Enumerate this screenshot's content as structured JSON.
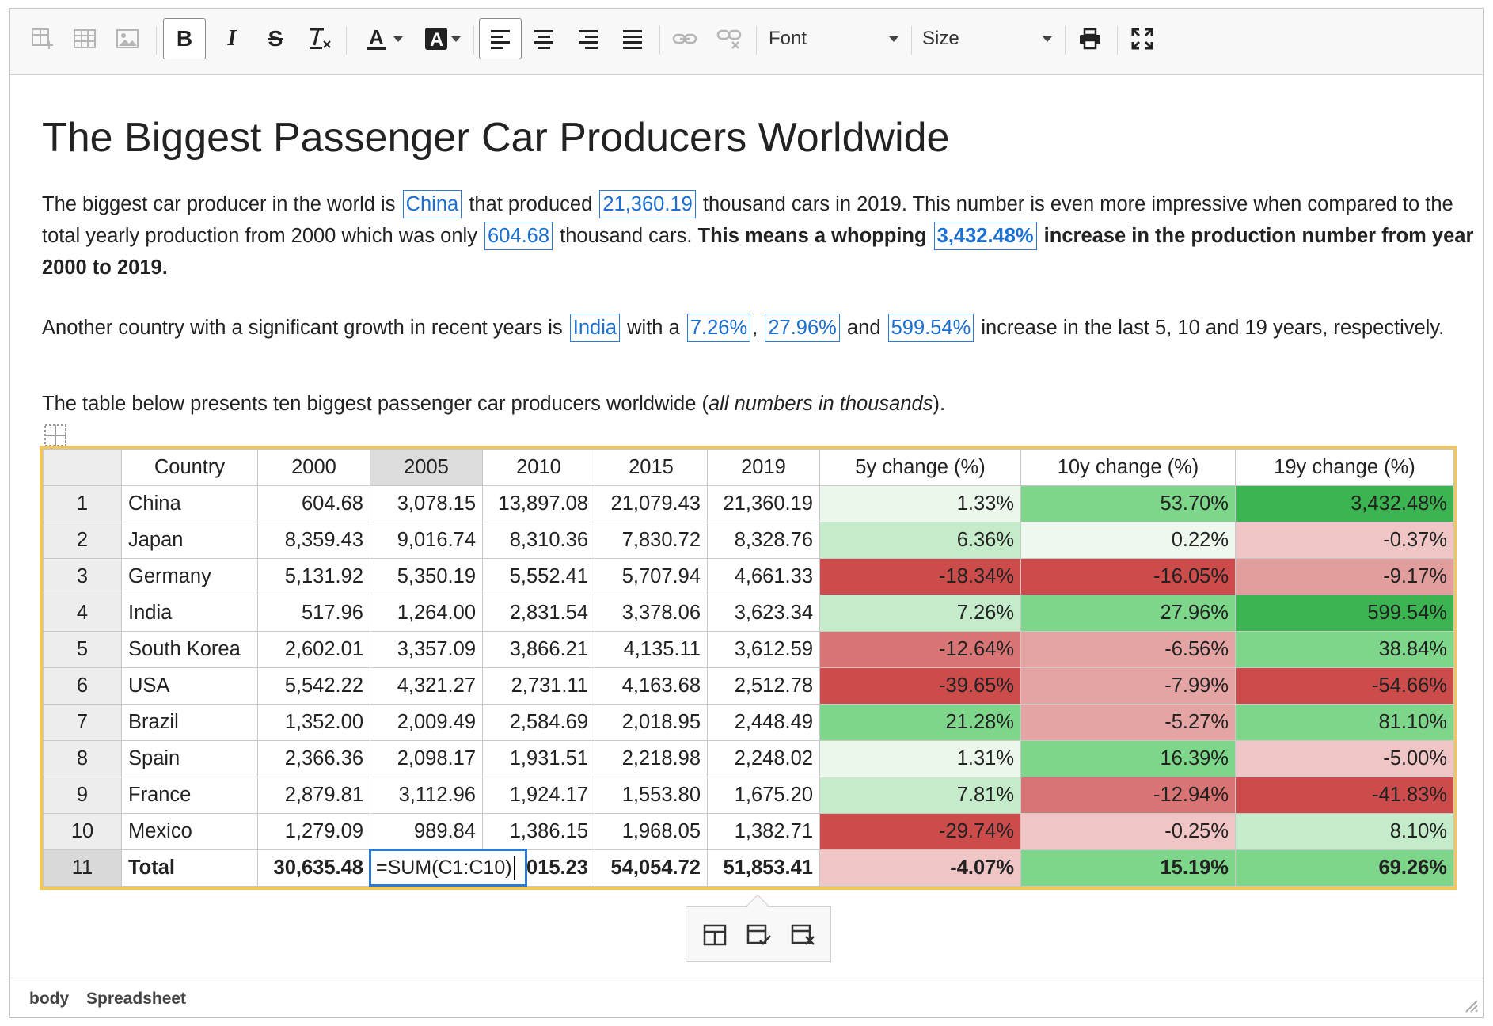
{
  "toolbar": {
    "font_label": "Font",
    "size_label": "Size"
  },
  "doc": {
    "title": "The Biggest Passenger Car Producers Worldwide",
    "p1": {
      "t1": "The biggest car producer in the world is",
      "v_country": "China",
      "t2": "that produced",
      "v_2019": "21,360.19",
      "t3": "thousand cars in 2019. This number is even more impressive when compared to the total yearly production from 2000 which was only",
      "v_2000": "604.68",
      "t4": "thousand cars.",
      "b1": "This means a whopping",
      "v_increase": "3,432.48%",
      "b2": "increase in the production number from year 2000 to 2019."
    },
    "p2": {
      "t1": "Another country with a significant growth in recent years is",
      "v_country": "India",
      "t2": "with a",
      "v_5y": "7.26%",
      "sep": ",",
      "v_10y": "27.96%",
      "t3": "and",
      "v_19y": "599.54%",
      "t4": "increase in the last 5, 10 and 19 years, respectively."
    },
    "p3": {
      "t1": "The table below presents ten biggest passenger car producers worldwide (",
      "em": "all numbers in thousands",
      "t2": ")."
    }
  },
  "table": {
    "headers": [
      "",
      "Country",
      "2000",
      "2005",
      "2010",
      "2015",
      "2019",
      "5y change (%)",
      "10y change (%)",
      "19y change (%)"
    ],
    "rows": [
      {
        "n": "1",
        "country": "China",
        "y2000": "604.68",
        "y2005": "3,078.15",
        "y2010": "13,897.08",
        "y2015": "21,079.43",
        "y2019": "21,360.19",
        "c5": "1.33%",
        "c10": "53.70%",
        "c19": "3,432.48%",
        "bg5": "#eaf7ea",
        "bg10": "#7dd68a",
        "bg19": "#3cb451"
      },
      {
        "n": "2",
        "country": "Japan",
        "y2000": "8,359.43",
        "y2005": "9,016.74",
        "y2010": "8,310.36",
        "y2015": "7,830.72",
        "y2019": "8,328.76",
        "c5": "6.36%",
        "c10": "0.22%",
        "c19": "-0.37%",
        "bg5": "#c5ecca",
        "bg10": "#eef8ee",
        "bg19": "#efc5c5"
      },
      {
        "n": "3",
        "country": "Germany",
        "y2000": "5,131.92",
        "y2005": "5,350.19",
        "y2010": "5,552.41",
        "y2015": "5,707.94",
        "y2019": "4,661.33",
        "c5": "-18.34%",
        "c10": "-16.05%",
        "c19": "-9.17%",
        "bg5": "#cc4b4b",
        "bg10": "#cc4b4b",
        "bg19": "#e29d9d"
      },
      {
        "n": "4",
        "country": "India",
        "y2000": "517.96",
        "y2005": "1,264.00",
        "y2010": "2,831.54",
        "y2015": "3,378.06",
        "y2019": "3,623.34",
        "c5": "7.26%",
        "c10": "27.96%",
        "c19": "599.54%",
        "bg5": "#c5ecca",
        "bg10": "#7dd68a",
        "bg19": "#3cb451"
      },
      {
        "n": "5",
        "country": "South Korea",
        "y2000": "2,602.01",
        "y2005": "3,357.09",
        "y2010": "3,866.21",
        "y2015": "4,135.11",
        "y2019": "3,612.59",
        "c5": "-12.64%",
        "c10": "-6.56%",
        "c19": "38.84%",
        "bg5": "#d97474",
        "bg10": "#e5a4a4",
        "bg19": "#7dd68a"
      },
      {
        "n": "6",
        "country": "USA",
        "y2000": "5,542.22",
        "y2005": "4,321.27",
        "y2010": "2,731.11",
        "y2015": "4,163.68",
        "y2019": "2,512.78",
        "c5": "-39.65%",
        "c10": "-7.99%",
        "c19": "-54.66%",
        "bg5": "#cc4b4b",
        "bg10": "#e5a4a4",
        "bg19": "#cc4b4b"
      },
      {
        "n": "7",
        "country": "Brazil",
        "y2000": "1,352.00",
        "y2005": "2,009.49",
        "y2010": "2,584.69",
        "y2015": "2,018.95",
        "y2019": "2,448.49",
        "c5": "21.28%",
        "c10": "-5.27%",
        "c19": "81.10%",
        "bg5": "#7dd68a",
        "bg10": "#e5a4a4",
        "bg19": "#7dd68a"
      },
      {
        "n": "8",
        "country": "Spain",
        "y2000": "2,366.36",
        "y2005": "2,098.17",
        "y2010": "1,931.51",
        "y2015": "2,218.98",
        "y2019": "2,248.02",
        "c5": "1.31%",
        "c10": "16.39%",
        "c19": "-5.00%",
        "bg5": "#eaf7ea",
        "bg10": "#7dd68a",
        "bg19": "#efc5c5"
      },
      {
        "n": "9",
        "country": "France",
        "y2000": "2,879.81",
        "y2005": "3,112.96",
        "y2010": "1,924.17",
        "y2015": "1,553.80",
        "y2019": "1,675.20",
        "c5": "7.81%",
        "c10": "-12.94%",
        "c19": "-41.83%",
        "bg5": "#c5ecca",
        "bg10": "#d97474",
        "bg19": "#cc4b4b"
      },
      {
        "n": "10",
        "country": "Mexico",
        "y2000": "1,279.09",
        "y2005": "989.84",
        "y2010": "1,386.15",
        "y2015": "1,968.05",
        "y2019": "1,382.71",
        "c5": "-29.74%",
        "c10": "-0.25%",
        "c19": "8.10%",
        "bg5": "#cc4b4b",
        "bg10": "#efc5c5",
        "bg19": "#c5ecca"
      }
    ],
    "total": {
      "n": "11",
      "label": "Total",
      "y2000": "30,635.48",
      "editor_value": "=SUM(C1:C10)",
      "y2010_visible": "015.23",
      "y2015": "54,054.72",
      "y2019": "51,853.41",
      "c5": "-4.07%",
      "c10": "15.19%",
      "c19": "69.26%",
      "bg5": "#efc5c5",
      "bg10": "#7dd68a",
      "bg19": "#7dd68a"
    }
  },
  "statusbar": {
    "crumbs": [
      "body",
      "Spreadsheet"
    ]
  },
  "colors": {
    "highlight_border": "#2b7ad8",
    "table_border": "#f1c75c"
  }
}
